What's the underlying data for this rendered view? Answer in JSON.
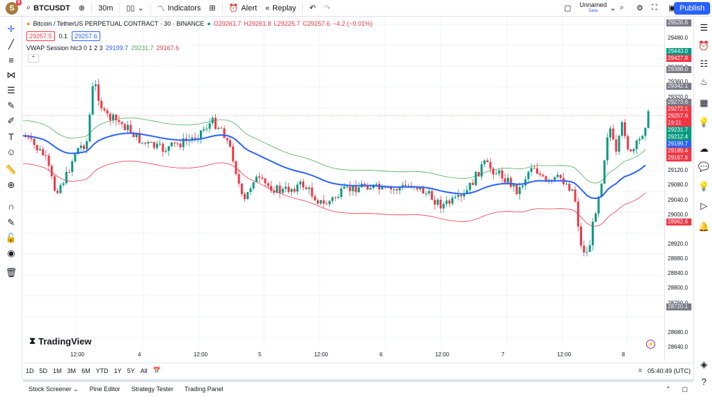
{
  "topbar": {
    "avatar_letter": "S",
    "notif_count": "6",
    "symbol": "BTCUSDT",
    "interval": "30m",
    "indicators": "Indicators",
    "alert": "Alert",
    "replay": "Replay",
    "layout_name": "Unnamed",
    "layout_state": "Save",
    "publish": "Publish"
  },
  "legend": {
    "title": "Bitcoin / TetherUS PERPETUAL CONTRACT · 30 · BINANCE",
    "o": "O29261.7",
    "h": "H29261.8",
    "l": "L29225.7",
    "c": "C29257.6",
    "chg": "−4.2 (−0.01%)",
    "sell": "29257.5",
    "spread": "0.1",
    "buy": "29257.6",
    "vwap": "VWAP Session hlc3 0 1 2 3",
    "vwap_v1": "29199.7",
    "vwap_v2": "29231.7",
    "vwap_v3": "29167.6"
  },
  "price_axis": [
    "29480.0",
    "29440.0",
    "29400.0",
    "29360.0",
    "29320.0",
    "29120.0",
    "29080.0",
    "29040.0",
    "29000.0",
    "28920.0",
    "28880.0",
    "28840.0",
    "28800.0",
    "28760.0",
    "28680.0",
    "28640.0"
  ],
  "price_tags": [
    {
      "v": "29520.6",
      "color": "#787b86"
    },
    {
      "v": "29443.0",
      "color": "#089981"
    },
    {
      "v": "29427.8",
      "color": "#f23645"
    },
    {
      "v": "29388.0",
      "color": "#787b86"
    },
    {
      "v": "29342.1",
      "color": "#787b86"
    },
    {
      "v": "29273.6",
      "color": "#787b86"
    },
    {
      "v": "29272.1",
      "color": "#f23645"
    },
    {
      "v": "29257.6",
      "color": "#f23645"
    },
    {
      "v": "19:11",
      "color": "#f23645"
    },
    {
      "v": "29231.7",
      "color": "#089981"
    },
    {
      "v": "29212.4",
      "color": "#089981"
    },
    {
      "v": "29199.7",
      "color": "#2962ff"
    },
    {
      "v": "29189.4",
      "color": "#f23645"
    },
    {
      "v": "29167.6",
      "color": "#f23645"
    },
    {
      "v": "28962.6",
      "color": "#f23645"
    },
    {
      "v": "28720.1",
      "color": "#787b86"
    }
  ],
  "time_axis": [
    "12:00",
    "4",
    "12:00",
    "5",
    "12:00",
    "6",
    "12:00",
    "7",
    "12:00",
    "8"
  ],
  "ranges": [
    "1D",
    "5D",
    "1M",
    "3M",
    "6M",
    "YTD",
    "1Y",
    "5Y",
    "All"
  ],
  "clock": "05:40:49 (UTC)",
  "panels": [
    "Stock Screener",
    "Pine Editor",
    "Strategy Tester",
    "Trading Panel"
  ],
  "logo": "TradingView"
}
